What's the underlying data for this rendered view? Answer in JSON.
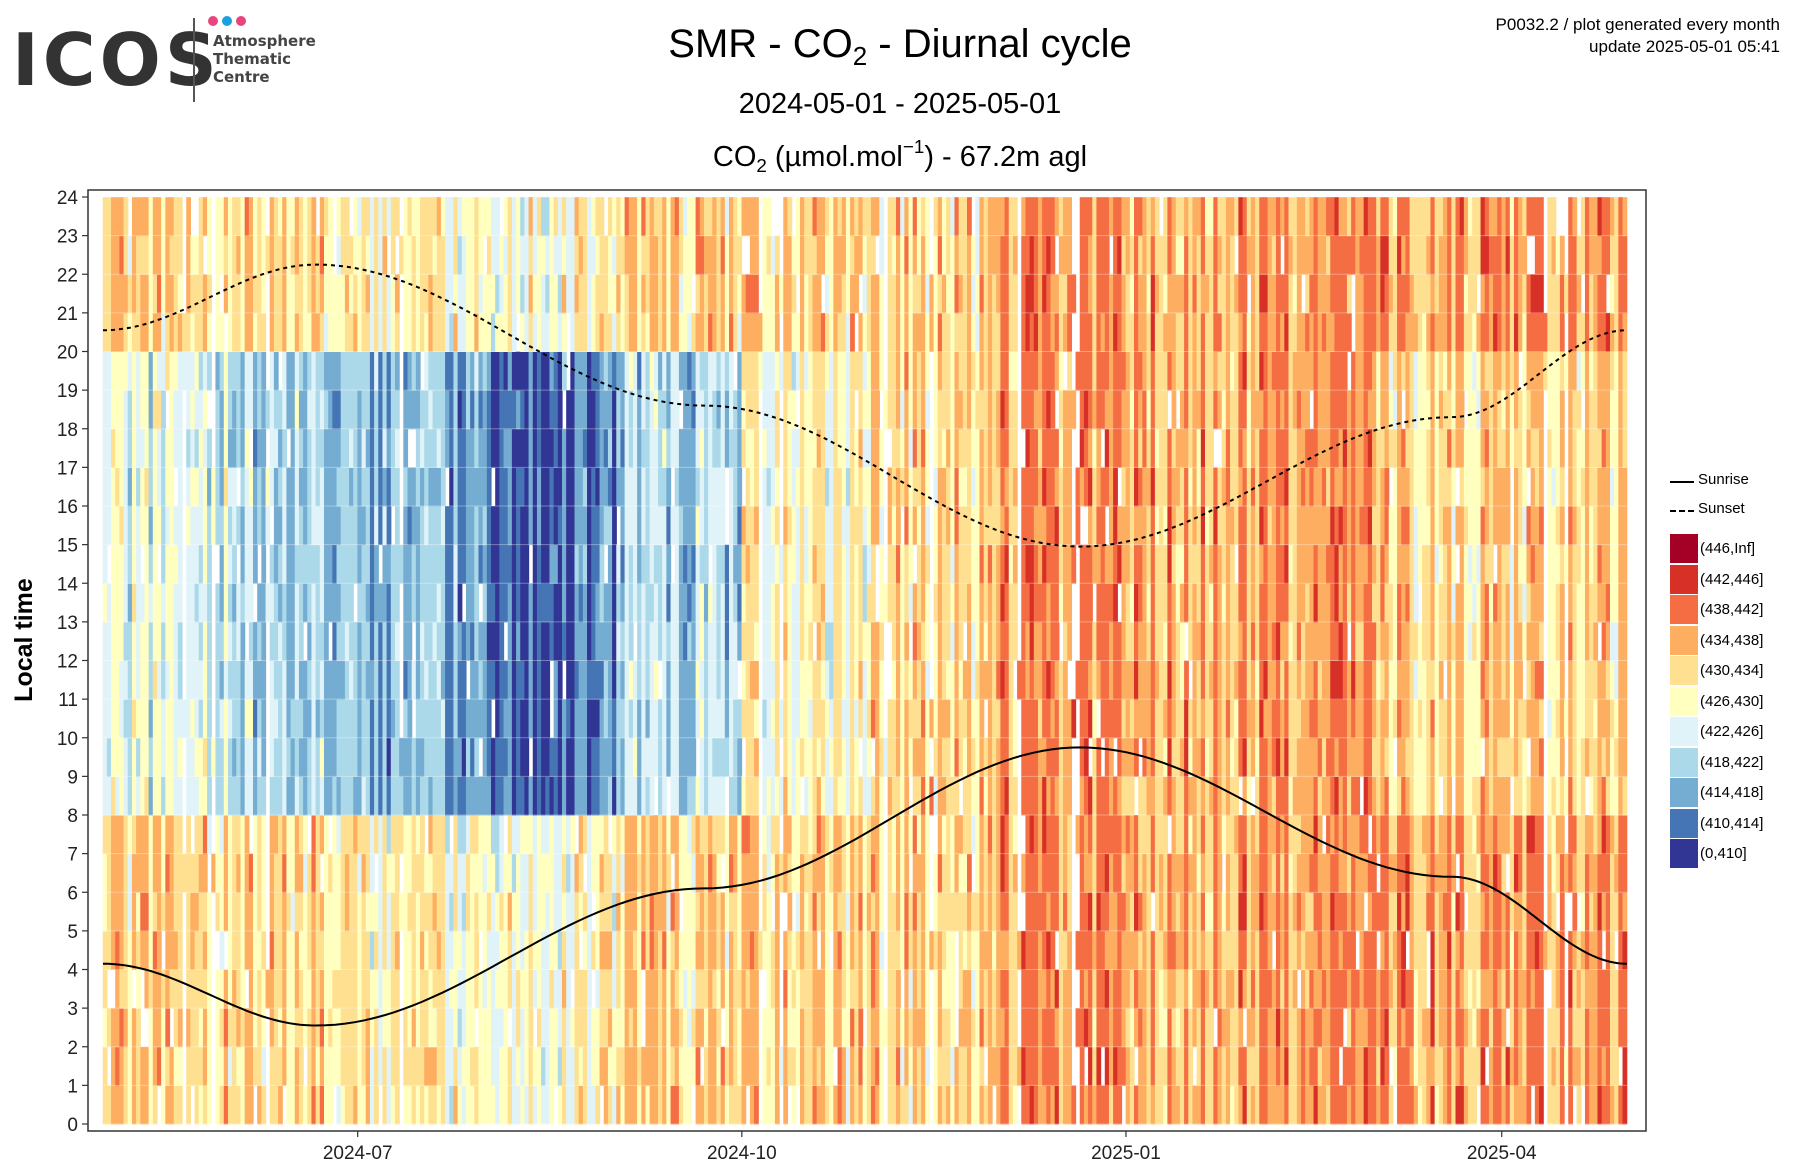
{
  "logo": {
    "word": "ICOS",
    "subtitle": "Atmosphere\nThematic\nCentre",
    "dot_colors": [
      "#e8457c",
      "#1ba1e2",
      "#e8457c"
    ]
  },
  "meta": {
    "line1": "P0032.2 / plot generated every month",
    "line2": "update  2025-05-01 05:41"
  },
  "titles": {
    "main_prefix": "SMR - CO",
    "main_sub": "2",
    "main_suffix": " - Diurnal cycle",
    "period": "2024-05-01 - 2025-05-01",
    "unit_prefix": "CO",
    "unit_sub": "2",
    "unit_mid": " (µmol.mol",
    "unit_sup": "−1",
    "unit_suffix": ") - 67.2m agl"
  },
  "chart_data": {
    "type": "heatmap",
    "x": {
      "start": "2024-05-01",
      "end": "2025-05-01",
      "ticks": [
        "2024-07",
        "2024-10",
        "2025-01",
        "2025-04"
      ]
    },
    "y": {
      "label": "Local time",
      "min": 0,
      "max": 24,
      "ticks": [
        0,
        1,
        2,
        3,
        4,
        5,
        6,
        7,
        8,
        9,
        10,
        11,
        12,
        13,
        14,
        15,
        16,
        17,
        18,
        19,
        20,
        21,
        22,
        23,
        24
      ]
    },
    "color_bins": [
      {
        "label": "(446,Inf]",
        "color": "#a50026"
      },
      {
        "label": "(442,446]",
        "color": "#d73027"
      },
      {
        "label": "(438,442]",
        "color": "#f46d43"
      },
      {
        "label": "(434,438]",
        "color": "#fdae61"
      },
      {
        "label": "(430,434]",
        "color": "#fee090"
      },
      {
        "label": "(426,430]",
        "color": "#ffffbf"
      },
      {
        "label": "(422,426]",
        "color": "#e0f3f8"
      },
      {
        "label": "(418,422]",
        "color": "#abd9e9"
      },
      {
        "label": "(414,418]",
        "color": "#74add1"
      },
      {
        "label": "(410,414]",
        "color": "#4575b4"
      },
      {
        "label": "(0,410]",
        "color": "#313695"
      }
    ],
    "typical_bin_by_month": [
      {
        "month": "2024-05",
        "night": 4,
        "day": 6
      },
      {
        "month": "2024-06",
        "night": 4,
        "day": 7
      },
      {
        "month": "2024-07",
        "night": 5,
        "day": 8
      },
      {
        "month": "2024-08",
        "night": 5,
        "day": 9
      },
      {
        "month": "2024-09",
        "night": 4,
        "day": 7
      },
      {
        "month": "2024-10",
        "night": 4,
        "day": 5
      },
      {
        "month": "2024-11",
        "night": 4,
        "day": 4
      },
      {
        "month": "2024-12",
        "night": 3,
        "day": 3
      },
      {
        "month": "2025-01",
        "night": 3,
        "day": 3
      },
      {
        "month": "2025-02",
        "night": 3,
        "day": 3
      },
      {
        "month": "2025-03",
        "night": 3,
        "day": 4
      },
      {
        "month": "2025-04",
        "night": 3,
        "day": 4
      }
    ],
    "lines": [
      {
        "name": "Sunrise",
        "style": "solid",
        "points": [
          [
            "2024-05-01",
            4.15
          ],
          [
            "2024-06-21",
            2.55
          ],
          [
            "2024-09-22",
            6.1
          ],
          [
            "2024-12-21",
            9.75
          ],
          [
            "2025-03-20",
            6.4
          ],
          [
            "2025-05-01",
            4.15
          ]
        ]
      },
      {
        "name": "Sunset",
        "style": "dashed",
        "points": [
          [
            "2024-05-01",
            20.55
          ],
          [
            "2024-06-21",
            22.25
          ],
          [
            "2024-09-22",
            18.6
          ],
          [
            "2024-12-21",
            14.95
          ],
          [
            "2025-03-20",
            18.3
          ],
          [
            "2025-05-01",
            20.55
          ]
        ]
      }
    ]
  }
}
